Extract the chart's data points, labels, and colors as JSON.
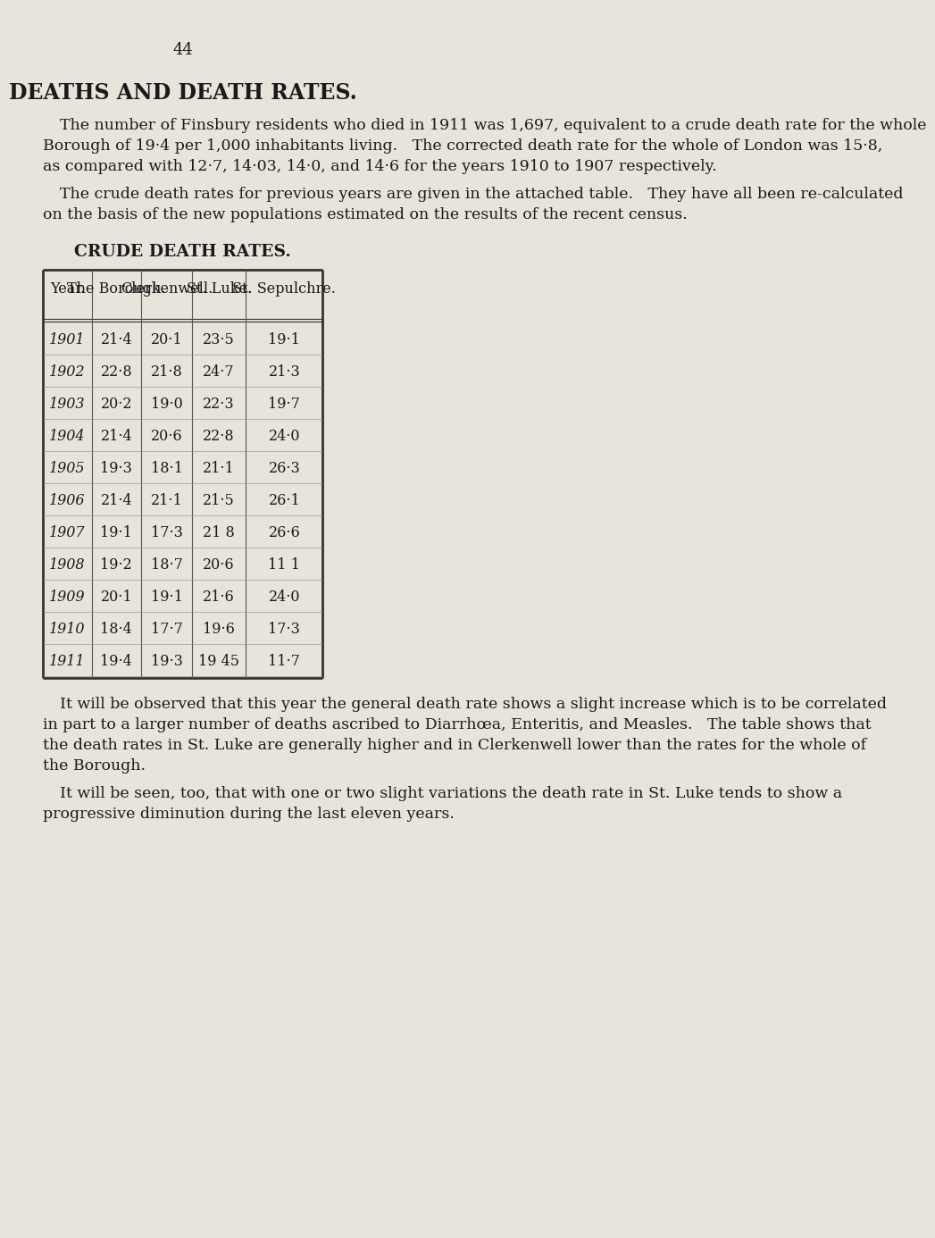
{
  "page_number": "44",
  "title": "DEATHS AND DEATH RATES.",
  "para1": "The number of Finsbury residents who died in 1911 was 1,697, equivalent to a crude death rate for the whole Borough of 19·4 per 1,000 inhabitants living.   The corrected death rate for the whole of London was 15·8, as compared with 12·7, 14·03, 14·0, and 14·6 for the years 1910 to 1907 respectively.",
  "para2": "The crude death rates for previous years are given in the attached table.   They have all been re-calculated on the basis of the new populations estimated on the results of the recent census.",
  "table_title": "CRUDE DEATH RATES.",
  "col_headers": [
    "Year.",
    "The Borough.",
    "Clerkenwell.",
    "St. Luke.",
    "St. Sepulchre."
  ],
  "table_data": [
    [
      "1901",
      "21·4",
      "20·1",
      "23·5",
      "19·1"
    ],
    [
      "1902",
      "22·8",
      "21·8",
      "24·7",
      "21·3"
    ],
    [
      "1903",
      "20·2",
      "19·0",
      "22·3",
      "19·7"
    ],
    [
      "1904",
      "21·4",
      "20·6",
      "22·8",
      "24·0"
    ],
    [
      "1905",
      "19·3",
      "18·1",
      "21·1",
      "26·3"
    ],
    [
      "1906",
      "21·4",
      "21·1",
      "21·5",
      "26·1"
    ],
    [
      "1907",
      "19·1",
      "17·3",
      "21 8",
      "26·6"
    ],
    [
      "1908",
      "19·2",
      "18·7",
      "20·6",
      "11 1"
    ],
    [
      "1909",
      "20·1",
      "19·1",
      "21·6",
      "24·0"
    ],
    [
      "1910",
      "18·4",
      "17·7",
      "19·6",
      "17·3"
    ],
    [
      "1911",
      "19·4",
      "19·3",
      "19 45",
      "11·7"
    ]
  ],
  "para3": "It will be observed that this year the general death rate shows a slight increase which is to be correlated in part to a larger number of deaths ascribed to Diarrhœa, Enteritis, and Measles.   The table shows that the death rates in St. Luke are generally higher and in Clerkenwell lower than the rates for the whole of the Borough.",
  "para4": "It will be seen, too, that with one or two slight variations the death rate in St. Luke tends to show a progressive diminution during the last eleven years.",
  "bg_color": "#e8e4dc",
  "text_color": "#1a1a1a",
  "font_body": "serif",
  "font_title": "serif"
}
